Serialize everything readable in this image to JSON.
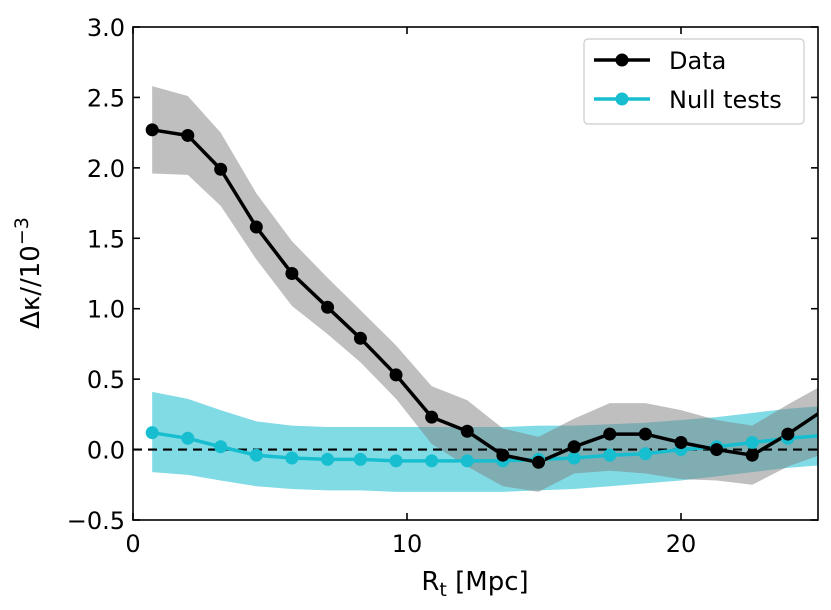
{
  "chart_data": {
    "type": "line",
    "title": "",
    "xlabel": {
      "base": "R",
      "sub": "t",
      "rest": " [Mpc]"
    },
    "ylabel": {
      "base": "Δκ//10",
      "sup": "−3"
    },
    "xlim": [
      0,
      25
    ],
    "ylim": [
      -0.5,
      3.0
    ],
    "xticks": [
      0,
      10,
      20
    ],
    "xtick_labels": [
      "0",
      "10",
      "20"
    ],
    "yticks": [
      -0.5,
      0.0,
      0.5,
      1.0,
      1.5,
      2.0,
      2.5,
      3.0
    ],
    "ytick_labels": [
      "−0.5",
      "0.0",
      "0.5",
      "1.0",
      "1.5",
      "2.0",
      "2.5",
      "3.0"
    ],
    "reference_line": {
      "y": 0,
      "style": "dashed",
      "color": "#000000"
    },
    "legend_position": "top-right",
    "series": [
      {
        "name": "Data",
        "color": "#000000",
        "band_color": "#7f7f7f",
        "x": [
          0.7,
          2.0,
          3.2,
          4.5,
          5.8,
          7.1,
          8.3,
          9.6,
          10.9,
          12.2,
          13.5,
          14.8,
          16.1,
          17.4,
          18.7,
          20.0,
          21.3,
          22.6,
          23.9,
          25.2
        ],
        "y": [
          2.27,
          2.23,
          1.99,
          1.58,
          1.25,
          1.01,
          0.79,
          0.53,
          0.23,
          0.13,
          -0.04,
          -0.09,
          0.02,
          0.11,
          0.11,
          0.05,
          0.0,
          -0.04,
          0.11,
          0.28
        ],
        "lower": [
          1.96,
          1.95,
          1.73,
          1.35,
          1.02,
          0.82,
          0.62,
          0.36,
          0.04,
          -0.12,
          -0.26,
          -0.3,
          -0.17,
          -0.15,
          -0.17,
          -0.21,
          -0.22,
          -0.25,
          -0.12,
          -0.03
        ],
        "upper": [
          2.58,
          2.51,
          2.25,
          1.82,
          1.48,
          1.22,
          0.99,
          0.74,
          0.45,
          0.35,
          0.15,
          0.09,
          0.22,
          0.33,
          0.33,
          0.28,
          0.21,
          0.17,
          0.32,
          0.46
        ]
      },
      {
        "name": "Null tests",
        "color": "#17becf",
        "band_color": "#17becf",
        "x": [
          0.7,
          2.0,
          3.2,
          4.5,
          5.8,
          7.1,
          8.3,
          9.6,
          10.9,
          12.2,
          13.5,
          14.8,
          16.1,
          17.4,
          18.7,
          20.0,
          21.3,
          22.6,
          23.9,
          25.2
        ],
        "y": [
          0.12,
          0.08,
          0.02,
          -0.04,
          -0.06,
          -0.07,
          -0.07,
          -0.08,
          -0.08,
          -0.08,
          -0.08,
          -0.07,
          -0.06,
          -0.04,
          -0.03,
          0.0,
          0.02,
          0.05,
          0.08,
          0.1
        ],
        "lower": [
          -0.16,
          -0.18,
          -0.22,
          -0.26,
          -0.28,
          -0.29,
          -0.29,
          -0.3,
          -0.3,
          -0.3,
          -0.3,
          -0.29,
          -0.28,
          -0.26,
          -0.24,
          -0.22,
          -0.19,
          -0.16,
          -0.13,
          -0.11
        ],
        "upper": [
          0.41,
          0.36,
          0.28,
          0.2,
          0.17,
          0.16,
          0.16,
          0.16,
          0.16,
          0.16,
          0.16,
          0.17,
          0.17,
          0.18,
          0.19,
          0.21,
          0.23,
          0.26,
          0.29,
          0.31
        ]
      }
    ]
  }
}
